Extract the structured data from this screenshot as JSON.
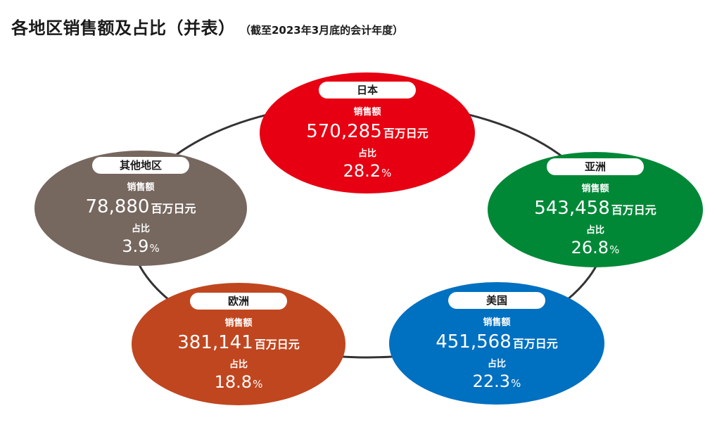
{
  "title": "各地区销售额及占比（并表）",
  "subtitle": "（截至2023年3月底的会计年度）",
  "chart_data": {
    "type": "pie",
    "labels": {
      "sales": "销售额",
      "share": "占比",
      "unit": "百万日元",
      "percent_sign": "%"
    },
    "regions": [
      {
        "name": "日本",
        "sales": "570,285",
        "sales_value": 570285,
        "share": "28.2",
        "share_value": 28.2,
        "color": "#e60012"
      },
      {
        "name": "亚洲",
        "sales": "543,458",
        "sales_value": 543458,
        "share": "26.8",
        "share_value": 26.8,
        "color": "#008837"
      },
      {
        "name": "美国",
        "sales": "451,568",
        "sales_value": 451568,
        "share": "22.3",
        "share_value": 22.3,
        "color": "#0070c0"
      },
      {
        "name": "欧洲",
        "sales": "381,141",
        "sales_value": 381141,
        "share": "18.8",
        "share_value": 18.8,
        "color": "#c0461f"
      },
      {
        "name": "其他地区",
        "sales": "78,880",
        "sales_value": 78880,
        "share": "3.9",
        "share_value": 3.9,
        "color": "#76675f"
      }
    ],
    "ring_color": "#333333"
  }
}
